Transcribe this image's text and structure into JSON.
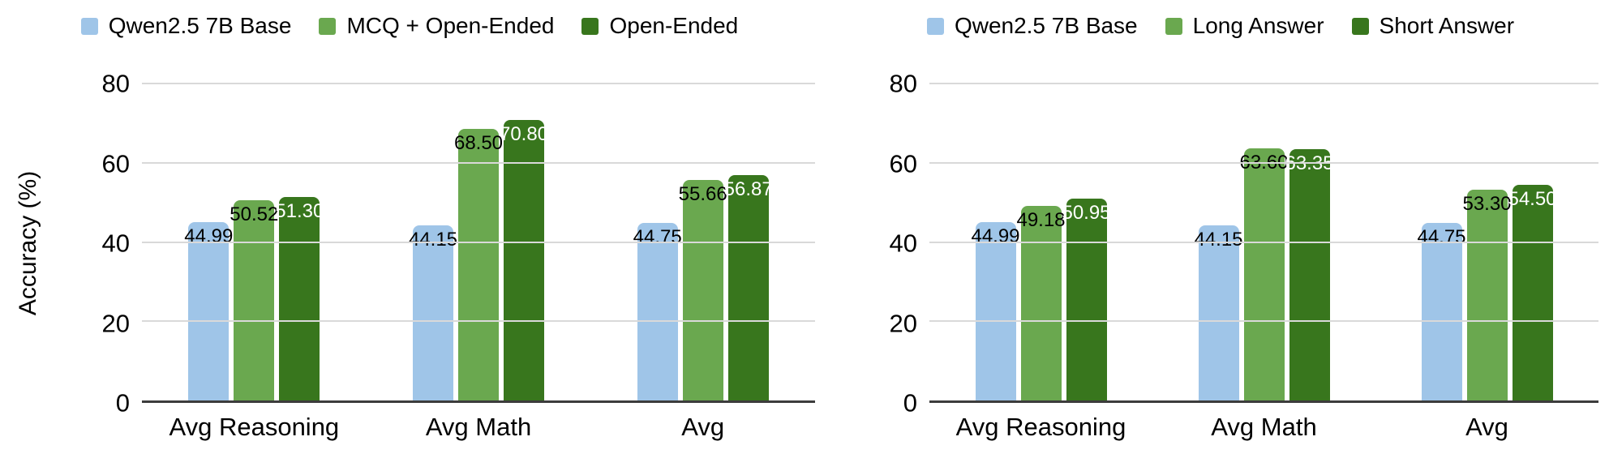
{
  "chart_data": [
    {
      "type": "bar",
      "title": "",
      "ylabel": "Accuracy (%)",
      "xlabel": "",
      "ylim": [
        0,
        80
      ],
      "yticks": [
        0,
        20,
        40,
        60,
        80
      ],
      "grid": true,
      "legend_position": "top",
      "value_labels": true,
      "categories": [
        "Avg Reasoning",
        "Avg Math",
        "Avg"
      ],
      "series": [
        {
          "name": "Qwen2.5 7B Base",
          "color": "#9fc5e8",
          "label_color": "#000000",
          "values": [
            44.99,
            44.15,
            44.75
          ]
        },
        {
          "name": "MCQ + Open-Ended",
          "color": "#6aa84f",
          "label_color": "#000000",
          "values": [
            50.52,
            68.5,
            55.66
          ]
        },
        {
          "name": "Open-Ended",
          "color": "#38761d",
          "label_color": "#ffffff",
          "values": [
            51.3,
            70.8,
            56.87
          ]
        }
      ]
    },
    {
      "type": "bar",
      "title": "",
      "ylabel": "",
      "xlabel": "",
      "ylim": [
        0,
        80
      ],
      "yticks": [
        0,
        20,
        40,
        60,
        80
      ],
      "grid": true,
      "legend_position": "top",
      "value_labels": true,
      "categories": [
        "Avg Reasoning",
        "Avg Math",
        "Avg"
      ],
      "series": [
        {
          "name": "Qwen2.5 7B Base",
          "color": "#9fc5e8",
          "label_color": "#000000",
          "values": [
            44.99,
            44.15,
            44.75
          ]
        },
        {
          "name": "Long Answer",
          "color": "#6aa84f",
          "label_color": "#000000",
          "values": [
            49.18,
            63.6,
            53.3
          ]
        },
        {
          "name": "Short Answer",
          "color": "#38761d",
          "label_color": "#ffffff",
          "values": [
            50.95,
            63.35,
            54.5
          ]
        }
      ]
    }
  ],
  "style": {
    "gridline_color": "#d9d9d9",
    "axis_line_color": "#3c3c3c",
    "background_color": "#ffffff",
    "text_color": "#000000"
  }
}
